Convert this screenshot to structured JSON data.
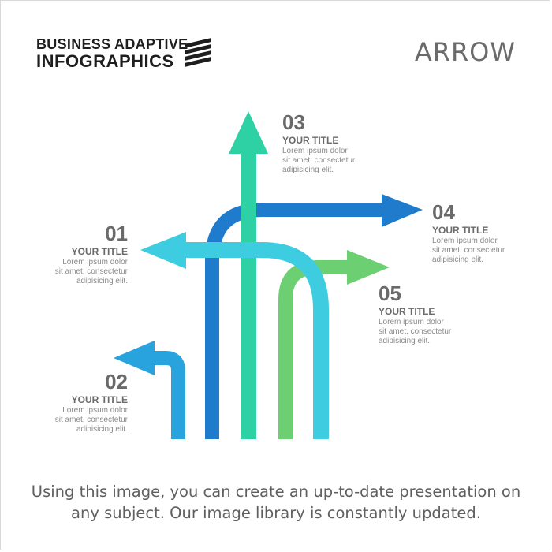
{
  "header": {
    "logo_line1": "BUSINESS ADAPTIVE",
    "logo_line2": "INFOGRAPHICS",
    "section_label": "ARROW"
  },
  "colors": {
    "arrow_01": "#3ecde0",
    "arrow_02": "#29a3dd",
    "arrow_03": "#2dd1a4",
    "arrow_04": "#1f7bcc",
    "arrow_05": "#6ccf72"
  },
  "items": [
    {
      "num": "01",
      "title": "YOUR TITLE",
      "body": "Lorem ipsum dolor\nsit amet, consectetur\nadipisicing elit."
    },
    {
      "num": "02",
      "title": "YOUR TITLE",
      "body": "Lorem ipsum dolor\nsit amet, consectetur\nadipisicing elit."
    },
    {
      "num": "03",
      "title": "YOUR TITLE",
      "body": "Lorem ipsum dolor\nsit amet, consectetur\nadipisicing elit."
    },
    {
      "num": "04",
      "title": "YOUR TITLE",
      "body": "Lorem ipsum dolor\nsit amet, consectetur\nadipisicing elit."
    },
    {
      "num": "05",
      "title": "YOUR TITLE",
      "body": "Lorem ipsum dolor\nsit amet, consectetur\nadipisicing elit."
    }
  ],
  "caption": "Using this image, you can create an up-to-date presentation on\nany subject. Our image library is constantly updated."
}
